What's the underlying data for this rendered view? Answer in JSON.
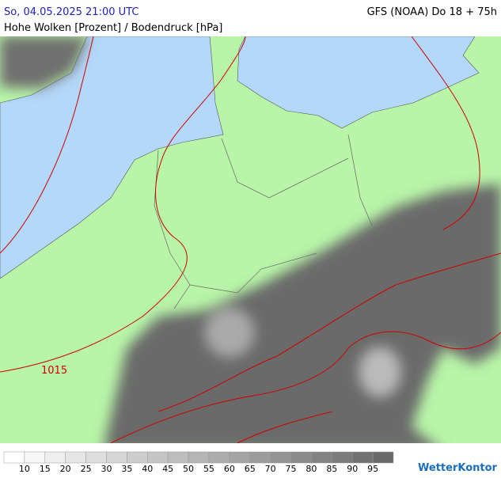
{
  "header": {
    "datetime": "So, 04.05.2025 21:00 UTC",
    "model": "GFS (NOAA) Do 18 + 75h",
    "subtitle": "Hohe Wolken [Prozent] / Bodendruck [hPa]"
  },
  "map": {
    "isobar_labels": [
      "1015"
    ]
  },
  "legend": {
    "labels": [
      10,
      15,
      20,
      25,
      30,
      35,
      40,
      45,
      50,
      55,
      60,
      65,
      70,
      75,
      80,
      85,
      90,
      95
    ]
  },
  "logo": "WetterKontor"
}
